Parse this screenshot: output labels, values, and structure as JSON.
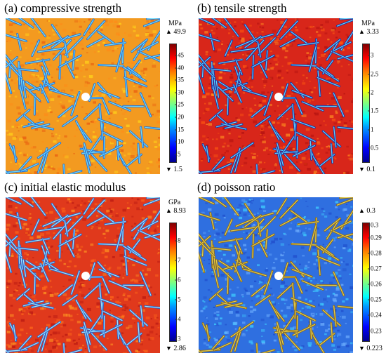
{
  "panels": [
    {
      "title": "(a) compressive strength",
      "unit": "MPa",
      "max": "49.9",
      "min": "1.5",
      "ticks": [
        "45",
        "40",
        "35",
        "30",
        "25",
        "20",
        "15",
        "10",
        "5"
      ],
      "range": [
        1.5,
        49.9
      ],
      "background_color": "#f39a20",
      "colormap": "jet"
    },
    {
      "title": "(b) tensile strength",
      "unit": "MPa",
      "max": "3.33",
      "min": "0.1",
      "ticks": [
        "3",
        "2.5",
        "2",
        "1.5",
        "1",
        "0.5"
      ],
      "range": [
        0.1,
        3.33
      ],
      "background_color": "#d8261a",
      "colormap": "jet"
    },
    {
      "title": "(c) initial elastic modulus",
      "unit": "GPa",
      "max": "8.93",
      "min": "2.86",
      "ticks": [
        "8",
        "7",
        "6",
        "5",
        "4",
        "3"
      ],
      "range": [
        2.86,
        8.93
      ],
      "background_color": "#e0391c",
      "colormap": "jet"
    },
    {
      "title": "(d) poisson ratio",
      "unit": "",
      "max": "0.3",
      "min": "0.223",
      "ticks": [
        "0.3",
        "0.29",
        "0.28",
        "0.27",
        "0.26",
        "0.25",
        "0.24",
        "0.23"
      ],
      "range": [
        0.223,
        0.3
      ],
      "background_color": "#2f6fe0",
      "colormap": "jet"
    }
  ],
  "up_marker": "▲",
  "down_marker": "▼"
}
